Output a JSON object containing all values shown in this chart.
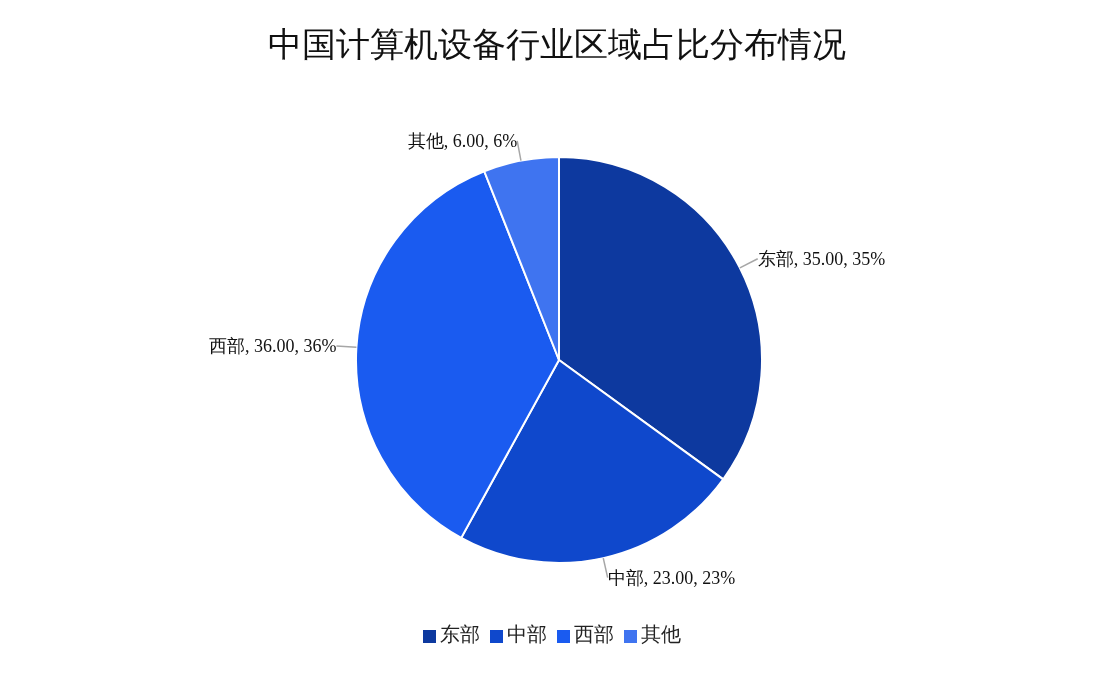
{
  "chart_data": {
    "type": "pie",
    "title": "中国计算机设备行业区域占比分布情况",
    "categories": [
      "东部",
      "中部",
      "西部",
      "其他"
    ],
    "values": [
      35,
      23,
      36,
      6
    ],
    "colors": [
      "#0d399f",
      "#0f48cc",
      "#1a5bf0",
      "#3f74f0"
    ],
    "value_labels": [
      "东部, 35.00, 35%",
      "中部, 23.00, 23%",
      "西部, 36.00, 36%",
      "其他, 6.00, 6%"
    ],
    "legend": "bottom"
  }
}
